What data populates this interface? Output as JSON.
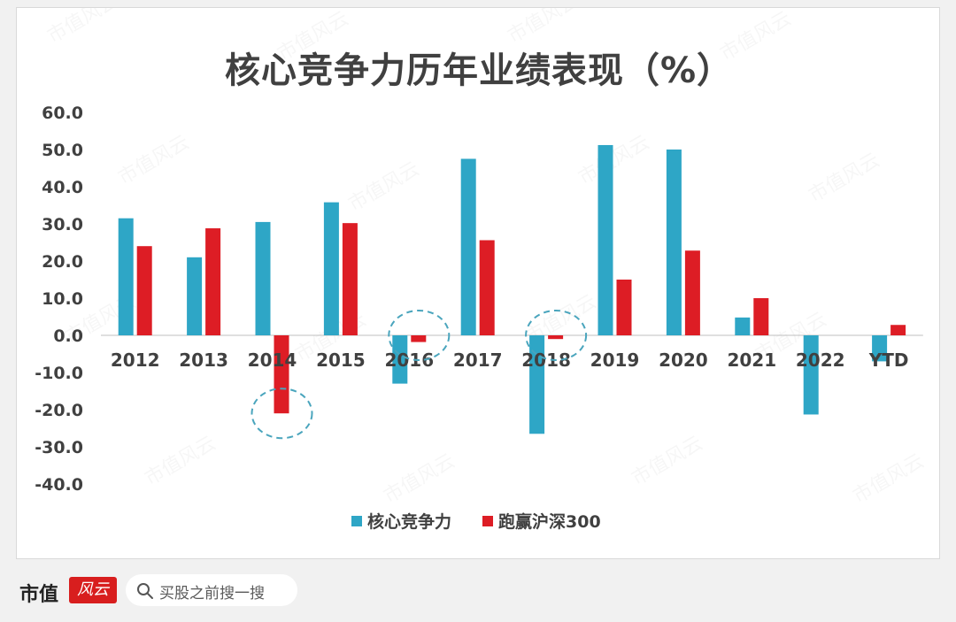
{
  "footer": {
    "brand_name": "市值",
    "brand_logo_text": "风云",
    "search_text": "买股之前搜一搜"
  },
  "watermark": "市值风云",
  "colors": {
    "series_blue": "#2ea6c6",
    "series_red": "#dd1d25",
    "circle": "#4aa5bd",
    "text": "#404040"
  },
  "chart_data": {
    "type": "bar",
    "title": "核心竞争力历年业绩表现（%）",
    "categories": [
      "2012",
      "2013",
      "2014",
      "2015",
      "2016",
      "2017",
      "2018",
      "2019",
      "2020",
      "2021",
      "2022",
      "YTD"
    ],
    "series": [
      {
        "name": "核心竞争力",
        "values": [
          31.5,
          21.0,
          30.5,
          35.8,
          -13.0,
          47.5,
          -26.5,
          51.2,
          50.0,
          4.8,
          -21.3,
          -7.0
        ]
      },
      {
        "name": "跑赢沪深300",
        "values": [
          24.0,
          28.8,
          -21.0,
          30.2,
          -1.8,
          25.6,
          -1.0,
          15.0,
          22.8,
          10.0,
          0.0,
          2.8
        ]
      }
    ],
    "ylim": [
      -40,
      60
    ],
    "yticks": [
      60,
      50,
      40,
      30,
      20,
      10,
      0,
      -10,
      -20,
      -30,
      -40
    ],
    "ytick_labels": [
      "60.0",
      "50.0",
      "40.0",
      "30.0",
      "20.0",
      "10.0",
      "0.0",
      "-10.0",
      "-20.0",
      "-30.0",
      "-40.0"
    ],
    "highlight_categories": [
      "2014",
      "2016",
      "2018"
    ],
    "legend_position": "bottom",
    "grid": false
  }
}
